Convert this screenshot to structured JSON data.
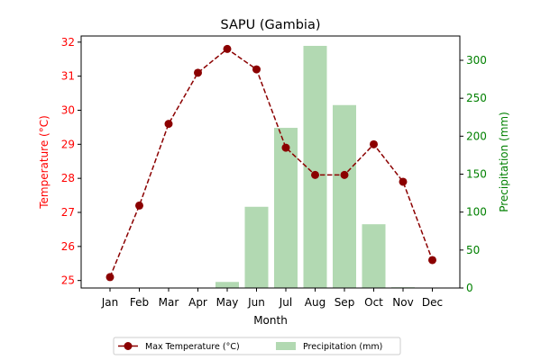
{
  "chart_data": {
    "type": "bar+line",
    "title": "SAPU (Gambia)",
    "xlabel": "Month",
    "ylabel_left": "Temperature (°C)",
    "ylabel_right": "Precipitation (mm)",
    "categories": [
      "Jan",
      "Feb",
      "Mar",
      "Apr",
      "May",
      "Jun",
      "Jul",
      "Aug",
      "Sep",
      "Oct",
      "Nov",
      "Dec"
    ],
    "left_axis": {
      "ylim": [
        24.78,
        32.18
      ],
      "ticks": [
        25,
        26,
        27,
        28,
        29,
        30,
        31,
        32
      ]
    },
    "right_axis": {
      "ylim": [
        0,
        332
      ],
      "ticks": [
        0,
        50,
        100,
        150,
        200,
        250,
        300
      ]
    },
    "series": [
      {
        "name": "Max Temperature (°C)",
        "kind": "line",
        "axis": "left",
        "style": "dashed, circle markers",
        "color": "#8b0000",
        "values": [
          25.1,
          27.2,
          29.6,
          31.1,
          31.8,
          31.2,
          28.9,
          28.1,
          28.1,
          29.0,
          27.9,
          25.6
        ]
      },
      {
        "name": "Precipitation (mm)",
        "kind": "bar",
        "axis": "right",
        "color": "#b2d9b2",
        "values": [
          0,
          0,
          0,
          0,
          8,
          107,
          211,
          319,
          241,
          84,
          1,
          0
        ]
      }
    ],
    "legend_position": "bottom-center",
    "colors": {
      "left_axis": "#ff0000",
      "right_axis": "#008000",
      "text": "#000000"
    }
  }
}
